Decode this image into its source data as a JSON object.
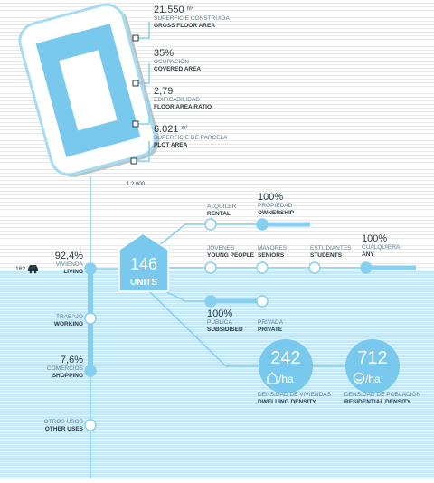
{
  "plot": {
    "scale": "1:2.000",
    "metrics": [
      {
        "value": "21.550",
        "unit": "m²",
        "label_es": "SUPERFICIE CONSTRUIDA",
        "label_en": "GROSS FLOOR AREA"
      },
      {
        "value": "35%",
        "label_es": "OCUPACIÓN",
        "label_en": "COVERED AREA"
      },
      {
        "value": "2,79",
        "label_es": "EDIFICABILIDAD",
        "label_en": "FLOOR AREA RATIO"
      },
      {
        "value": "6.021",
        "unit": "m²",
        "label_es": "SUPERFICIE DE PARCELA",
        "label_en": "PLOT AREA"
      }
    ]
  },
  "units": {
    "count": "146",
    "label": "UNITS"
  },
  "parking": "162",
  "uses": [
    {
      "value": "92,4%",
      "label_es": "VIVIENDA",
      "label_en": "LIVING"
    },
    {
      "label_es": "TRABAJO",
      "label_en": "WORKING"
    },
    {
      "value": "7,6%",
      "label_es": "COMERCIOS",
      "label_en": "SHOPPING"
    },
    {
      "label_es": "OTROS USOS",
      "label_en": "OTHER USES"
    }
  ],
  "tenure": [
    {
      "label_es": "ALQUILER",
      "label_en": "RENTAL"
    },
    {
      "value": "100%",
      "label_es": "PROPIEDAD",
      "label_en": "OWNERSHIP"
    }
  ],
  "residents": [
    {
      "label_es": "JÓVENES",
      "label_en": "YOUNG PEOPLE"
    },
    {
      "label_es": "MAYORES",
      "label_en": "SENIORS"
    },
    {
      "label_es": "ESTUDIANTES",
      "label_en": "STUDENTS"
    },
    {
      "value": "100%",
      "label_es": "CUALQUIERA",
      "label_en": "ANY"
    }
  ],
  "promotion": [
    {
      "value": "100%",
      "label_es": "PÚBLICA",
      "label_en": "SUBSIDISED"
    },
    {
      "label_es": "PRIVADA",
      "label_en": "PRIVATE"
    }
  ],
  "densities": [
    {
      "value": "242",
      "unit": "/ha",
      "label_es": "DENSIDAD DE VIVIENDAS",
      "label_en": "DWELLING DENSITY"
    },
    {
      "value": "712",
      "unit": "/ha",
      "label_es": "DENSIDAD DE POBLACIÓN",
      "label_en": "RESIDENTIAL DENSITY"
    }
  ]
}
